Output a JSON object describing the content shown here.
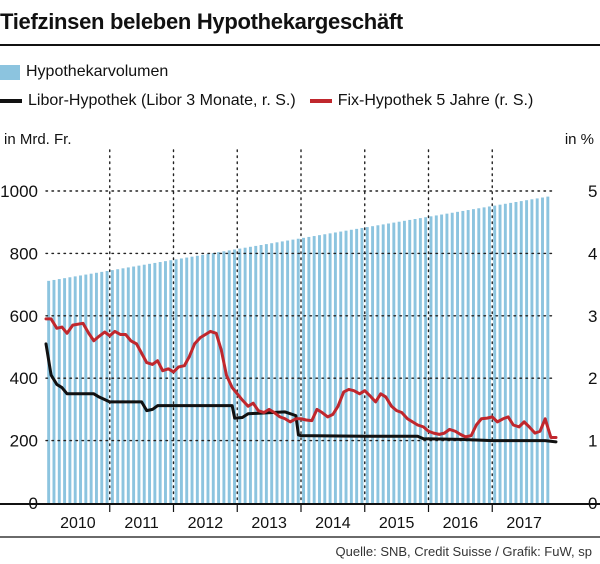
{
  "header": {
    "title": "Tiefzinsen beleben Hypothekargeschäft"
  },
  "legend": {
    "volume_label": "Hypothekarvolumen",
    "libor_label": "Libor-Hypothek (Libor 3 Monate, r. S.)",
    "fix_label": "Fix-Hypothek 5 Jahre (r. S.)"
  },
  "units": {
    "left": "in Mrd. Fr.",
    "right": "in %"
  },
  "footer": {
    "source": "Quelle: SNB, Credit Suisse / Grafik: FuW, sp"
  },
  "colors": {
    "bars": "#8cc4df",
    "libor": "#111111",
    "fix": "#c0272d",
    "grid": "#222222"
  },
  "chart_data": {
    "type": "bar",
    "x_range": [
      2010.0,
      2018.0
    ],
    "years": [
      "2010",
      "2011",
      "2012",
      "2013",
      "2014",
      "2015",
      "2016",
      "2017"
    ],
    "left_axis": {
      "ylim": [
        0,
        1000
      ],
      "ticks": [
        "0",
        "200",
        "400",
        "600",
        "800",
        "1000"
      ]
    },
    "right_axis": {
      "ylim": [
        0,
        5
      ],
      "ticks": [
        "0",
        "1",
        "2",
        "3",
        "4",
        "5"
      ]
    },
    "grid": true,
    "series": [
      {
        "name": "Hypothekarvolumen",
        "type": "bar",
        "axis": "left",
        "x_start": 2010.0,
        "x_end": 2017.83,
        "bar_count": 95,
        "start_value": 712,
        "end_value": 982
      },
      {
        "name": "Libor-Hypothek (Libor 3 Monate, r. S.)",
        "type": "line",
        "axis": "right",
        "points": [
          [
            2010.0,
            2.55
          ],
          [
            2010.04,
            2.3
          ],
          [
            2010.08,
            2.05
          ],
          [
            2010.17,
            1.9
          ],
          [
            2010.25,
            1.85
          ],
          [
            2010.33,
            1.75
          ],
          [
            2010.75,
            1.75
          ],
          [
            2010.83,
            1.7
          ],
          [
            2011.0,
            1.62
          ],
          [
            2011.5,
            1.62
          ],
          [
            2011.58,
            1.48
          ],
          [
            2011.67,
            1.5
          ],
          [
            2011.75,
            1.56
          ],
          [
            2012.0,
            1.56
          ],
          [
            2012.75,
            1.56
          ],
          [
            2012.92,
            1.56
          ],
          [
            2012.96,
            1.36
          ],
          [
            2013.08,
            1.37
          ],
          [
            2013.17,
            1.43
          ],
          [
            2013.75,
            1.46
          ],
          [
            2013.92,
            1.4
          ],
          [
            2013.96,
            1.09
          ],
          [
            2014.0,
            1.08
          ],
          [
            2015.0,
            1.07
          ],
          [
            2015.83,
            1.07
          ],
          [
            2015.92,
            1.03
          ],
          [
            2016.5,
            1.02
          ],
          [
            2017.0,
            1.0
          ],
          [
            2017.83,
            1.0
          ],
          [
            2018.0,
            0.98
          ]
        ]
      },
      {
        "name": "Fix-Hypothek 5 Jahre (r. S.)",
        "type": "line",
        "axis": "right",
        "points": [
          [
            2010.0,
            2.95
          ],
          [
            2010.08,
            2.95
          ],
          [
            2010.17,
            2.8
          ],
          [
            2010.25,
            2.82
          ],
          [
            2010.33,
            2.72
          ],
          [
            2010.42,
            2.85
          ],
          [
            2010.58,
            2.88
          ],
          [
            2010.67,
            2.72
          ],
          [
            2010.75,
            2.6
          ],
          [
            2010.83,
            2.67
          ],
          [
            2010.92,
            2.74
          ],
          [
            2011.0,
            2.68
          ],
          [
            2011.08,
            2.75
          ],
          [
            2011.17,
            2.7
          ],
          [
            2011.25,
            2.7
          ],
          [
            2011.33,
            2.6
          ],
          [
            2011.42,
            2.55
          ],
          [
            2011.5,
            2.4
          ],
          [
            2011.58,
            2.25
          ],
          [
            2011.67,
            2.22
          ],
          [
            2011.75,
            2.28
          ],
          [
            2011.83,
            2.12
          ],
          [
            2011.92,
            2.15
          ],
          [
            2012.0,
            2.1
          ],
          [
            2012.08,
            2.18
          ],
          [
            2012.17,
            2.2
          ],
          [
            2012.25,
            2.35
          ],
          [
            2012.33,
            2.55
          ],
          [
            2012.42,
            2.65
          ],
          [
            2012.5,
            2.7
          ],
          [
            2012.58,
            2.75
          ],
          [
            2012.67,
            2.72
          ],
          [
            2012.75,
            2.45
          ],
          [
            2012.83,
            2.05
          ],
          [
            2012.92,
            1.85
          ],
          [
            2013.0,
            1.75
          ],
          [
            2013.08,
            1.65
          ],
          [
            2013.17,
            1.55
          ],
          [
            2013.25,
            1.6
          ],
          [
            2013.33,
            1.48
          ],
          [
            2013.42,
            1.45
          ],
          [
            2013.5,
            1.5
          ],
          [
            2013.58,
            1.45
          ],
          [
            2013.67,
            1.38
          ],
          [
            2013.75,
            1.35
          ],
          [
            2013.83,
            1.3
          ],
          [
            2013.92,
            1.35
          ],
          [
            2014.0,
            1.35
          ],
          [
            2014.08,
            1.33
          ],
          [
            2014.17,
            1.32
          ],
          [
            2014.25,
            1.5
          ],
          [
            2014.33,
            1.45
          ],
          [
            2014.42,
            1.38
          ],
          [
            2014.5,
            1.42
          ],
          [
            2014.58,
            1.55
          ],
          [
            2014.67,
            1.78
          ],
          [
            2014.75,
            1.82
          ],
          [
            2014.83,
            1.8
          ],
          [
            2014.92,
            1.75
          ],
          [
            2015.0,
            1.8
          ],
          [
            2015.08,
            1.72
          ],
          [
            2015.17,
            1.62
          ],
          [
            2015.25,
            1.75
          ],
          [
            2015.33,
            1.7
          ],
          [
            2015.42,
            1.55
          ],
          [
            2015.5,
            1.48
          ],
          [
            2015.58,
            1.45
          ],
          [
            2015.67,
            1.35
          ],
          [
            2015.75,
            1.3
          ],
          [
            2015.83,
            1.25
          ],
          [
            2015.92,
            1.22
          ],
          [
            2016.0,
            1.15
          ],
          [
            2016.08,
            1.12
          ],
          [
            2016.17,
            1.1
          ],
          [
            2016.25,
            1.12
          ],
          [
            2016.33,
            1.18
          ],
          [
            2016.42,
            1.15
          ],
          [
            2016.5,
            1.1
          ],
          [
            2016.58,
            1.06
          ],
          [
            2016.67,
            1.08
          ],
          [
            2016.75,
            1.25
          ],
          [
            2016.83,
            1.35
          ],
          [
            2016.92,
            1.36
          ],
          [
            2017.0,
            1.38
          ],
          [
            2017.08,
            1.3
          ],
          [
            2017.17,
            1.35
          ],
          [
            2017.25,
            1.38
          ],
          [
            2017.33,
            1.25
          ],
          [
            2017.42,
            1.22
          ],
          [
            2017.5,
            1.3
          ],
          [
            2017.58,
            1.22
          ],
          [
            2017.67,
            1.12
          ],
          [
            2017.75,
            1.15
          ],
          [
            2017.83,
            1.35
          ],
          [
            2017.92,
            1.05
          ],
          [
            2018.0,
            1.05
          ]
        ]
      }
    ]
  }
}
